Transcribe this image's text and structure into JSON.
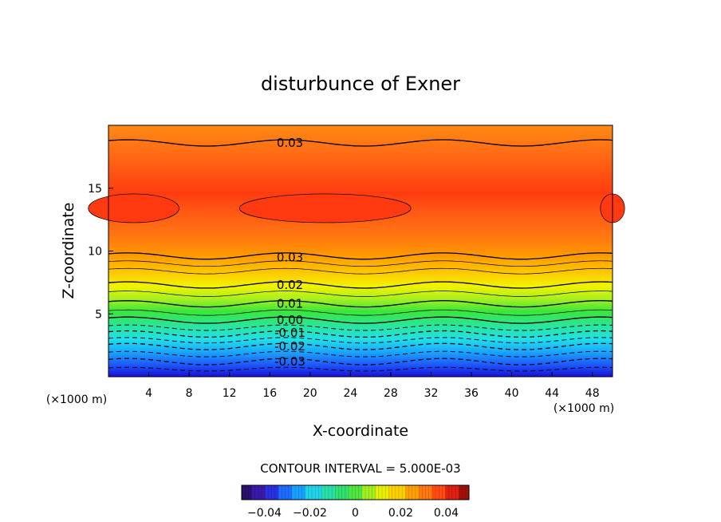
{
  "chart_data": {
    "type": "heatmap",
    "title": "disturbunce of Exner",
    "xlabel": "X-coordinate",
    "ylabel": "Z-coordinate",
    "x_unit": "(×1000 m)",
    "y_unit": "(×1000 m)",
    "xlim": [
      0,
      50
    ],
    "ylim": [
      0,
      20
    ],
    "x_ticks": [
      4,
      8,
      12,
      16,
      20,
      24,
      28,
      32,
      36,
      40,
      44,
      48
    ],
    "y_ticks": [
      5,
      10,
      15
    ],
    "contour_interval_label": "CONTOUR INTERVAL = 5.000E-03",
    "contour_labels": [
      {
        "text": "0.03",
        "x": 18,
        "z": 18.6
      },
      {
        "text": "0.03",
        "x": 18,
        "z": 9.5
      },
      {
        "text": "0.02",
        "x": 18,
        "z": 7.3
      },
      {
        "text": "0.01",
        "x": 18,
        "z": 5.8
      },
      {
        "text": "0.00",
        "x": 18,
        "z": 4.5
      },
      {
        "text": "-0.01",
        "x": 18,
        "z": 3.5
      },
      {
        "text": "-0.02",
        "x": 18,
        "z": 2.4
      },
      {
        "text": "-0.03",
        "x": 18,
        "z": 1.2
      }
    ],
    "colorbar": {
      "range": [
        -0.05,
        0.05
      ],
      "tick_labels": [
        "-0.04",
        "-0.02",
        "0",
        "0.02",
        "0.04"
      ],
      "tick_values": [
        -0.04,
        -0.02,
        0,
        0.02,
        0.04
      ]
    },
    "grid": false
  }
}
